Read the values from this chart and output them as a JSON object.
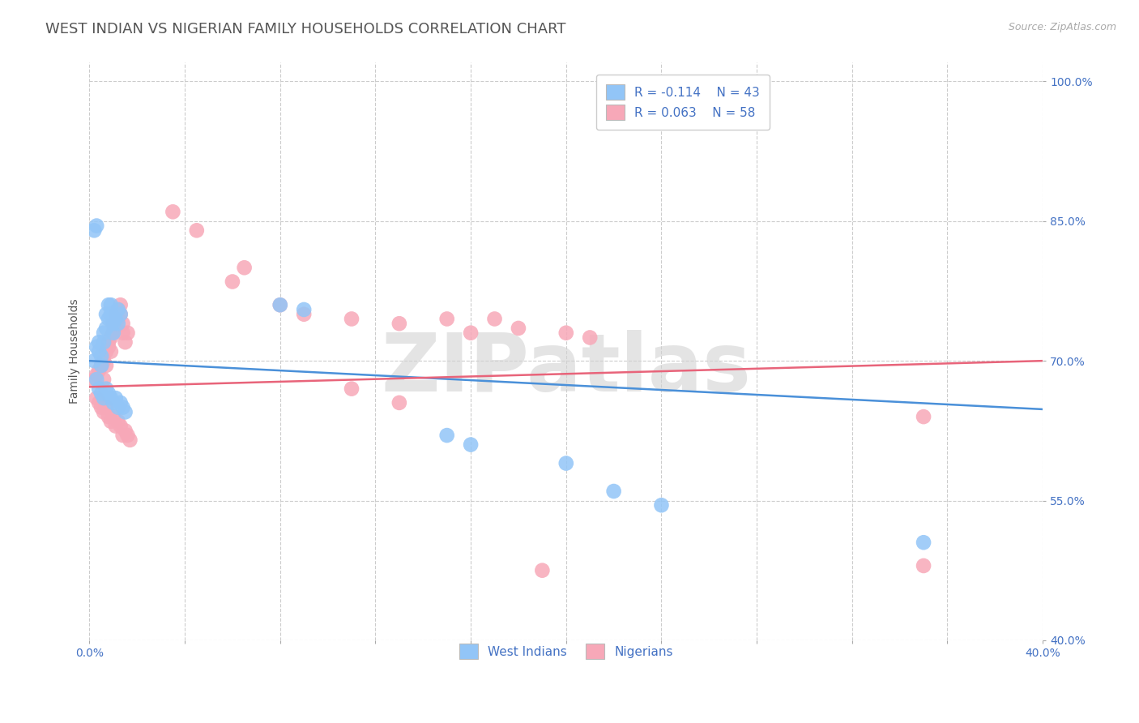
{
  "title": "WEST INDIAN VS NIGERIAN FAMILY HOUSEHOLDS CORRELATION CHART",
  "source": "Source: ZipAtlas.com",
  "ylabel": "Family Households",
  "xlim": [
    0.0,
    0.4
  ],
  "ylim": [
    0.4,
    1.02
  ],
  "xticks": [
    0.0,
    0.04,
    0.08,
    0.12,
    0.16,
    0.2,
    0.24,
    0.28,
    0.32,
    0.36,
    0.4
  ],
  "yticks": [
    0.4,
    0.55,
    0.7,
    0.85,
    1.0
  ],
  "yticklabels": [
    "40.0%",
    "55.0%",
    "70.0%",
    "85.0%",
    "100.0%"
  ],
  "west_indian_color": "#92C5F7",
  "nigerian_color": "#F7A8B8",
  "trend_west_indian_color": "#4A90D9",
  "trend_nigerian_color": "#E8647A",
  "legend_r_west_indian": "R = -0.114",
  "legend_n_west_indian": "N = 43",
  "legend_r_nigerian": "R = 0.063",
  "legend_n_nigerian": "N = 58",
  "watermark": "ZIPatlas",
  "background_color": "#ffffff",
  "grid_color": "#cccccc",
  "title_color": "#555555",
  "axis_color": "#4472C4",
  "wi_trend_x0": 0.0,
  "wi_trend_y0": 0.7,
  "wi_trend_x1": 0.4,
  "wi_trend_y1": 0.648,
  "ni_trend_x0": 0.0,
  "ni_trend_y0": 0.672,
  "ni_trend_x1": 0.4,
  "ni_trend_y1": 0.7,
  "west_indian_points": [
    [
      0.002,
      0.7
    ],
    [
      0.003,
      0.715
    ],
    [
      0.004,
      0.71
    ],
    [
      0.004,
      0.72
    ],
    [
      0.005,
      0.695
    ],
    [
      0.005,
      0.705
    ],
    [
      0.006,
      0.72
    ],
    [
      0.006,
      0.73
    ],
    [
      0.007,
      0.735
    ],
    [
      0.007,
      0.75
    ],
    [
      0.008,
      0.745
    ],
    [
      0.008,
      0.76
    ],
    [
      0.009,
      0.75
    ],
    [
      0.009,
      0.76
    ],
    [
      0.01,
      0.74
    ],
    [
      0.01,
      0.73
    ],
    [
      0.011,
      0.745
    ],
    [
      0.012,
      0.755
    ],
    [
      0.012,
      0.74
    ],
    [
      0.013,
      0.75
    ],
    [
      0.003,
      0.68
    ],
    [
      0.004,
      0.67
    ],
    [
      0.005,
      0.665
    ],
    [
      0.006,
      0.66
    ],
    [
      0.007,
      0.67
    ],
    [
      0.008,
      0.665
    ],
    [
      0.009,
      0.66
    ],
    [
      0.01,
      0.655
    ],
    [
      0.011,
      0.66
    ],
    [
      0.012,
      0.65
    ],
    [
      0.013,
      0.655
    ],
    [
      0.014,
      0.65
    ],
    [
      0.015,
      0.645
    ],
    [
      0.002,
      0.84
    ],
    [
      0.003,
      0.845
    ],
    [
      0.08,
      0.76
    ],
    [
      0.09,
      0.755
    ],
    [
      0.15,
      0.62
    ],
    [
      0.16,
      0.61
    ],
    [
      0.2,
      0.59
    ],
    [
      0.22,
      0.56
    ],
    [
      0.24,
      0.545
    ],
    [
      0.35,
      0.505
    ]
  ],
  "nigerian_points": [
    [
      0.002,
      0.68
    ],
    [
      0.003,
      0.685
    ],
    [
      0.004,
      0.69
    ],
    [
      0.005,
      0.695
    ],
    [
      0.006,
      0.68
    ],
    [
      0.006,
      0.7
    ],
    [
      0.007,
      0.695
    ],
    [
      0.007,
      0.71
    ],
    [
      0.008,
      0.715
    ],
    [
      0.008,
      0.72
    ],
    [
      0.009,
      0.71
    ],
    [
      0.009,
      0.725
    ],
    [
      0.01,
      0.73
    ],
    [
      0.01,
      0.74
    ],
    [
      0.011,
      0.735
    ],
    [
      0.011,
      0.75
    ],
    [
      0.012,
      0.745
    ],
    [
      0.012,
      0.755
    ],
    [
      0.013,
      0.75
    ],
    [
      0.013,
      0.76
    ],
    [
      0.014,
      0.74
    ],
    [
      0.014,
      0.73
    ],
    [
      0.015,
      0.72
    ],
    [
      0.016,
      0.73
    ],
    [
      0.003,
      0.66
    ],
    [
      0.004,
      0.655
    ],
    [
      0.005,
      0.65
    ],
    [
      0.006,
      0.645
    ],
    [
      0.007,
      0.65
    ],
    [
      0.008,
      0.64
    ],
    [
      0.009,
      0.635
    ],
    [
      0.01,
      0.64
    ],
    [
      0.011,
      0.63
    ],
    [
      0.012,
      0.635
    ],
    [
      0.013,
      0.63
    ],
    [
      0.014,
      0.62
    ],
    [
      0.015,
      0.625
    ],
    [
      0.016,
      0.62
    ],
    [
      0.017,
      0.615
    ],
    [
      0.035,
      0.86
    ],
    [
      0.045,
      0.84
    ],
    [
      0.06,
      0.785
    ],
    [
      0.065,
      0.8
    ],
    [
      0.08,
      0.76
    ],
    [
      0.09,
      0.75
    ],
    [
      0.11,
      0.745
    ],
    [
      0.13,
      0.74
    ],
    [
      0.15,
      0.745
    ],
    [
      0.16,
      0.73
    ],
    [
      0.17,
      0.745
    ],
    [
      0.18,
      0.735
    ],
    [
      0.2,
      0.73
    ],
    [
      0.21,
      0.725
    ],
    [
      0.11,
      0.67
    ],
    [
      0.13,
      0.655
    ],
    [
      0.35,
      0.64
    ],
    [
      0.35,
      0.48
    ],
    [
      0.19,
      0.475
    ]
  ],
  "title_fontsize": 13,
  "label_fontsize": 10,
  "tick_fontsize": 10,
  "legend_fontsize": 11
}
